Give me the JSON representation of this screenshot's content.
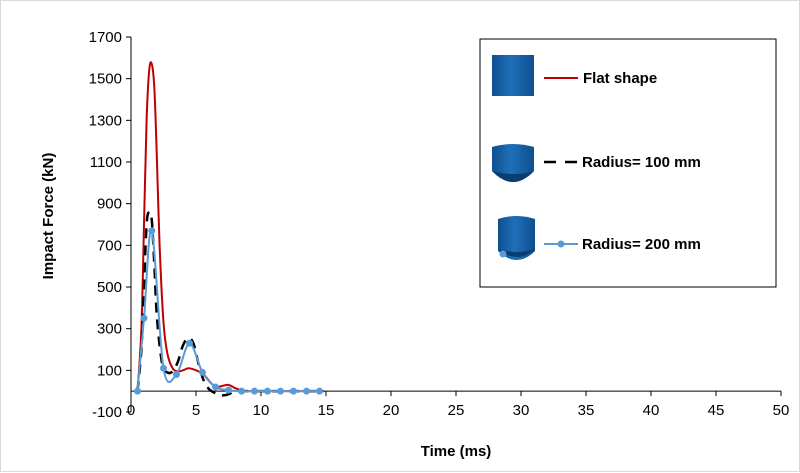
{
  "chart_data": {
    "type": "line",
    "title": "",
    "xlabel": "Time (ms)",
    "ylabel": "Impact Force (kN)",
    "xlim": [
      0,
      50
    ],
    "ylim": [
      -100,
      1700
    ],
    "xticks": [
      0,
      5,
      10,
      15,
      20,
      25,
      30,
      35,
      40,
      45,
      50
    ],
    "yticks": [
      -100,
      100,
      300,
      500,
      700,
      900,
      1100,
      1300,
      1500,
      1700
    ],
    "grid": false,
    "legend_position": "right",
    "series": [
      {
        "name": "Flat shape",
        "color": "#c00000",
        "style": "solid",
        "markers": false,
        "x": [
          0.5,
          0.8,
          1.0,
          1.2,
          1.4,
          1.6,
          1.8,
          2.0,
          2.2,
          2.5,
          2.8,
          3.2,
          3.6,
          4.0,
          4.4,
          4.8,
          5.2,
          5.6,
          6.0,
          6.5,
          7.0,
          7.5,
          8.0,
          8.5,
          9.0,
          10.0,
          11.0,
          12.0,
          13.0,
          14.0,
          14.8
        ],
        "y": [
          0,
          300,
          800,
          1300,
          1540,
          1570,
          1450,
          1100,
          700,
          330,
          180,
          110,
          95,
          100,
          110,
          105,
          95,
          80,
          50,
          20,
          25,
          30,
          15,
          5,
          0,
          0,
          0,
          0,
          0,
          0,
          0
        ]
      },
      {
        "name": "Radius= 100 mm",
        "color": "#000000",
        "style": "dashed",
        "markers": false,
        "x": [
          0.5,
          0.8,
          1.0,
          1.2,
          1.4,
          1.6,
          1.8,
          2.0,
          2.4,
          2.8,
          3.2,
          3.6,
          4.0,
          4.4,
          4.8,
          5.2,
          5.6,
          6.0,
          6.5,
          7.0,
          7.5,
          8.0,
          8.5,
          9.0,
          10.0,
          11.0,
          12.0,
          13.0,
          14.0,
          14.8
        ],
        "y": [
          0,
          200,
          500,
          800,
          860,
          820,
          600,
          350,
          130,
          90,
          95,
          140,
          220,
          255,
          230,
          130,
          50,
          10,
          -10,
          -20,
          -15,
          0,
          0,
          0,
          0,
          0,
          0,
          0,
          0,
          0
        ]
      },
      {
        "name": "Radius= 200 mm",
        "color": "#5b9bd5",
        "style": "solid",
        "markers": true,
        "x": [
          0.5,
          1.0,
          1.6,
          2.5,
          3.5,
          4.5,
          5.5,
          6.5,
          7.5,
          8.5,
          9.5,
          10.5,
          11.5,
          12.5,
          13.5,
          14.5
        ],
        "y": [
          0,
          350,
          770,
          110,
          80,
          230,
          90,
          20,
          5,
          0,
          0,
          0,
          0,
          0,
          0,
          0
        ]
      }
    ]
  },
  "legend": {
    "items": [
      {
        "label": "Flat shape",
        "icon": "flat-cylinder-icon"
      },
      {
        "label": "Radius= 100 mm",
        "icon": "radius-100-cylinder-icon"
      },
      {
        "label": "Radius= 200 mm",
        "icon": "radius-200-cylinder-icon"
      }
    ]
  }
}
